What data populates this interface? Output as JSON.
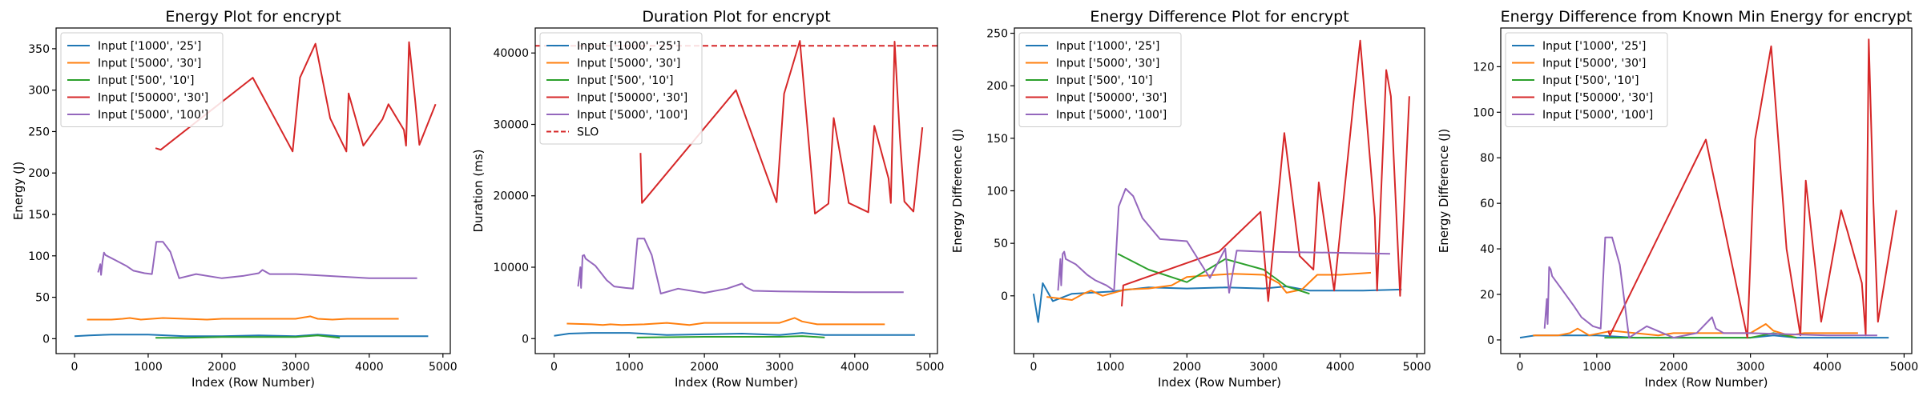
{
  "colors": {
    "c0": "#1f77b4",
    "c1": "#ff7f0e",
    "c2": "#2ca02c",
    "c3": "#d62728",
    "c4": "#9467bd"
  },
  "chart_data": [
    {
      "type": "line",
      "title": "Energy Plot for encrypt",
      "xlabel": "Index (Row Number)",
      "ylabel": "Energy (J)",
      "xlim": [
        -250,
        5100
      ],
      "ylim": [
        -18,
        375
      ],
      "xticks": [
        0,
        1000,
        2000,
        3000,
        4000,
        5000
      ],
      "yticks": [
        0,
        50,
        100,
        150,
        200,
        250,
        300,
        350
      ],
      "legend": "top-left",
      "series": [
        {
          "name": "Input ['1000', '25']",
          "color": "c0",
          "x": [
            0,
            200,
            500,
            1000,
            1500,
            2000,
            2500,
            3000,
            3300,
            3600,
            3900,
            4300,
            4800
          ],
          "y": [
            3,
            4,
            5,
            5,
            3,
            3,
            4,
            3,
            5,
            3,
            3,
            3,
            3
          ]
        },
        {
          "name": "Input ['5000', '30']",
          "color": "c1",
          "x": [
            170,
            500,
            650,
            750,
            900,
            1200,
            1500,
            1800,
            2000,
            2200,
            2600,
            3000,
            3200,
            3300,
            3500,
            3700,
            4000,
            4400
          ],
          "y": [
            23,
            23,
            24,
            25,
            23,
            25,
            24,
            23,
            24,
            24,
            24,
            24,
            27,
            24,
            23,
            24,
            24,
            24
          ]
        },
        {
          "name": "Input ['500', '10']",
          "color": "c2",
          "x": [
            1100,
            1500,
            2000,
            2500,
            3000,
            3300,
            3600
          ],
          "y": [
            1,
            1,
            2,
            2,
            2,
            4,
            1
          ]
        },
        {
          "name": "Input ['50000', '30']",
          "color": "c3",
          "x": [
            1100,
            1170,
            2420,
            2960,
            3060,
            3270,
            3470,
            3690,
            3720,
            3920,
            4180,
            4260,
            4470,
            4500,
            4540,
            4620,
            4680,
            4900
          ],
          "y": [
            230,
            228,
            315,
            226,
            315,
            356,
            266,
            226,
            296,
            233,
            265,
            283,
            252,
            233,
            358,
            290,
            234,
            283
          ]
        },
        {
          "name": "Input ['5000', '100']",
          "color": "c4",
          "x": [
            320,
            350,
            360,
            380,
            400,
            420,
            550,
            700,
            800,
            950,
            1050,
            1110,
            1200,
            1300,
            1420,
            1650,
            2000,
            2300,
            2500,
            2550,
            2650,
            3000,
            4000,
            4650
          ],
          "y": [
            80,
            90,
            77,
            93,
            104,
            101,
            95,
            88,
            82,
            79,
            78,
            117,
            117,
            105,
            73,
            78,
            73,
            76,
            79,
            83,
            78,
            78,
            73,
            73
          ]
        }
      ]
    },
    {
      "type": "line",
      "title": "Duration Plot for encrypt",
      "xlabel": "Index (Row Number)",
      "ylabel": "Duration (ms)",
      "xlim": [
        -250,
        5100
      ],
      "ylim": [
        -2100,
        43500
      ],
      "xticks": [
        0,
        1000,
        2000,
        3000,
        4000,
        5000
      ],
      "yticks": [
        0,
        10000,
        20000,
        30000,
        40000
      ],
      "legend": "top-left",
      "series": [
        {
          "name": "Input ['1000', '25']",
          "color": "c0",
          "x": [
            0,
            200,
            500,
            1000,
            1500,
            2000,
            2500,
            3000,
            3300,
            3600,
            3900,
            4300,
            4800
          ],
          "y": [
            400,
            700,
            800,
            800,
            500,
            600,
            700,
            500,
            800,
            500,
            500,
            500,
            500
          ]
        },
        {
          "name": "Input ['5000', '30']",
          "color": "c1",
          "x": [
            170,
            500,
            650,
            750,
            900,
            1200,
            1500,
            1800,
            2000,
            2200,
            2600,
            3000,
            3200,
            3300,
            3500,
            3700,
            4000,
            4400
          ],
          "y": [
            2100,
            2000,
            1900,
            2000,
            1900,
            2000,
            2200,
            1900,
            2200,
            2200,
            2200,
            2200,
            2900,
            2400,
            2000,
            2000,
            2000,
            2000
          ]
        },
        {
          "name": "Input ['500', '10']",
          "color": "c2",
          "x": [
            1100,
            1500,
            2000,
            2500,
            3000,
            3300,
            3600
          ],
          "y": [
            150,
            200,
            250,
            250,
            250,
            350,
            150
          ]
        },
        {
          "name": "Input ['50000', '30']",
          "color": "c3",
          "x": [
            1150,
            1170,
            2420,
            2960,
            3060,
            3270,
            3470,
            3650,
            3720,
            3920,
            4180,
            4260,
            4450,
            4480,
            4530,
            4600,
            4660,
            4780,
            4900
          ],
          "y": [
            26000,
            19000,
            34800,
            19100,
            34300,
            41700,
            17500,
            18900,
            30900,
            19000,
            17700,
            29800,
            22400,
            19000,
            41600,
            28200,
            19200,
            17800,
            29600
          ]
        },
        {
          "name": "Input ['5000', '100']",
          "color": "c4",
          "x": [
            320,
            350,
            360,
            380,
            400,
            420,
            550,
            700,
            800,
            950,
            1050,
            1110,
            1200,
            1300,
            1420,
            1650,
            2000,
            2300,
            2500,
            2550,
            2650,
            3000,
            4000,
            4650
          ],
          "y": [
            7300,
            10000,
            7100,
            11600,
            11700,
            11200,
            10200,
            8200,
            7300,
            7100,
            7000,
            14000,
            14000,
            11700,
            6300,
            7000,
            6400,
            7000,
            7700,
            7200,
            6700,
            6600,
            6500,
            6500
          ]
        },
        {
          "name": "SLO",
          "color": "c3",
          "dashed": true,
          "x": [
            -250,
            5100
          ],
          "y": [
            41000,
            41000
          ]
        }
      ]
    },
    {
      "type": "line",
      "title": "Energy Difference Plot for encrypt",
      "xlabel": "Index (Row Number)",
      "ylabel": "Energy Difference (J)",
      "xlim": [
        -250,
        5100
      ],
      "ylim": [
        -55,
        255
      ],
      "xticks": [
        0,
        1000,
        2000,
        3000,
        4000,
        5000
      ],
      "yticks": [
        0,
        50,
        100,
        150,
        200,
        250
      ],
      "legend": "top-left",
      "series": [
        {
          "name": "Input ['1000', '25']",
          "color": "c0",
          "x": [
            0,
            60,
            120,
            250,
            500,
            1000,
            1500,
            2000,
            2500,
            3000,
            3300,
            3600,
            3900,
            4300,
            4800
          ],
          "y": [
            2,
            -25,
            12,
            -5,
            2,
            4,
            8,
            7,
            8,
            7,
            9,
            5,
            5,
            5,
            6
          ]
        },
        {
          "name": "Input ['5000', '30']",
          "color": "c1",
          "x": [
            170,
            500,
            650,
            750,
            900,
            1200,
            1500,
            1800,
            2000,
            2200,
            2600,
            3000,
            3200,
            3300,
            3500,
            3700,
            4000,
            4400
          ],
          "y": [
            -1,
            -4,
            2,
            5,
            0,
            6,
            7,
            10,
            18,
            19,
            21,
            20,
            12,
            3,
            6,
            20,
            20,
            22
          ]
        },
        {
          "name": "Input ['500', '10']",
          "color": "c2",
          "x": [
            1100,
            1500,
            2000,
            2500,
            3000,
            3300,
            3600
          ],
          "y": [
            40,
            25,
            13,
            35,
            25,
            9,
            2
          ]
        },
        {
          "name": "Input ['50000', '30']",
          "color": "c3",
          "x": [
            1150,
            1170,
            2420,
            2960,
            3060,
            3270,
            3470,
            3650,
            3720,
            3920,
            4180,
            4260,
            4450,
            4480,
            4530,
            4600,
            4660,
            4780,
            4900
          ],
          "y": [
            -10,
            10,
            42,
            80,
            -5,
            155,
            38,
            25,
            108,
            5,
            190,
            243,
            75,
            5,
            95,
            215,
            190,
            0,
            190
          ]
        },
        {
          "name": "Input ['5000', '100']",
          "color": "c4",
          "x": [
            320,
            350,
            360,
            380,
            400,
            420,
            550,
            700,
            800,
            950,
            1050,
            1110,
            1200,
            1300,
            1420,
            1650,
            2000,
            2300,
            2500,
            2550,
            2650,
            3000,
            4000,
            4650
          ],
          "y": [
            5,
            35,
            10,
            40,
            42,
            35,
            30,
            20,
            15,
            10,
            5,
            85,
            102,
            95,
            74,
            54,
            52,
            17,
            45,
            3,
            43,
            42,
            41,
            40
          ]
        }
      ]
    },
    {
      "type": "line",
      "title": "Energy Difference from Known Min Energy for encrypt",
      "xlabel": "Index (Row Number)",
      "ylabel": "Energy Difference (J)",
      "xlim": [
        -250,
        5100
      ],
      "ylim": [
        -6,
        137
      ],
      "xticks": [
        0,
        1000,
        2000,
        3000,
        4000,
        5000
      ],
      "yticks": [
        0,
        20,
        40,
        60,
        80,
        100,
        120
      ],
      "legend": "top-left",
      "series": [
        {
          "name": "Input ['1000', '25']",
          "color": "c0",
          "x": [
            0,
            200,
            500,
            1000,
            1500,
            2000,
            2500,
            3000,
            3300,
            3600,
            3900,
            4300,
            4800
          ],
          "y": [
            1,
            2,
            2,
            2,
            1,
            1,
            1,
            1,
            2,
            1,
            1,
            1,
            1
          ]
        },
        {
          "name": "Input ['5000', '30']",
          "color": "c1",
          "x": [
            170,
            500,
            650,
            750,
            900,
            1200,
            1500,
            1800,
            2000,
            2200,
            2600,
            3000,
            3200,
            3300,
            3500,
            3700,
            4000,
            4400
          ],
          "y": [
            2,
            2,
            3,
            5,
            2,
            4,
            3,
            2,
            3,
            3,
            3,
            3,
            7,
            4,
            2,
            3,
            3,
            3
          ]
        },
        {
          "name": "Input ['500', '10']",
          "color": "c2",
          "x": [
            1100,
            1500,
            2000,
            2500,
            3000,
            3300,
            3600
          ],
          "y": [
            1,
            1,
            1,
            1,
            1,
            3,
            1
          ]
        },
        {
          "name": "Input ['50000', '30']",
          "color": "c3",
          "x": [
            1150,
            1170,
            2420,
            2960,
            3060,
            3270,
            3470,
            3650,
            3720,
            3920,
            4180,
            4260,
            4450,
            4500,
            4540,
            4600,
            4660,
            4900
          ],
          "y": [
            4,
            2,
            88,
            1,
            88,
            129,
            40,
            2,
            70,
            8,
            57,
            48,
            25,
            2,
            132,
            60,
            8,
            57
          ]
        },
        {
          "name": "Input ['5000', '100']",
          "color": "c4",
          "x": [
            320,
            350,
            360,
            380,
            400,
            420,
            550,
            700,
            800,
            950,
            1050,
            1110,
            1200,
            1300,
            1420,
            1650,
            2000,
            2300,
            2500,
            2550,
            2650,
            3000,
            4000,
            4650
          ],
          "y": [
            5,
            18,
            7,
            32,
            31,
            28,
            22,
            15,
            10,
            6,
            5,
            45,
            45,
            33,
            1,
            6,
            1,
            3,
            10,
            5,
            3,
            3,
            2,
            2
          ]
        }
      ]
    }
  ]
}
